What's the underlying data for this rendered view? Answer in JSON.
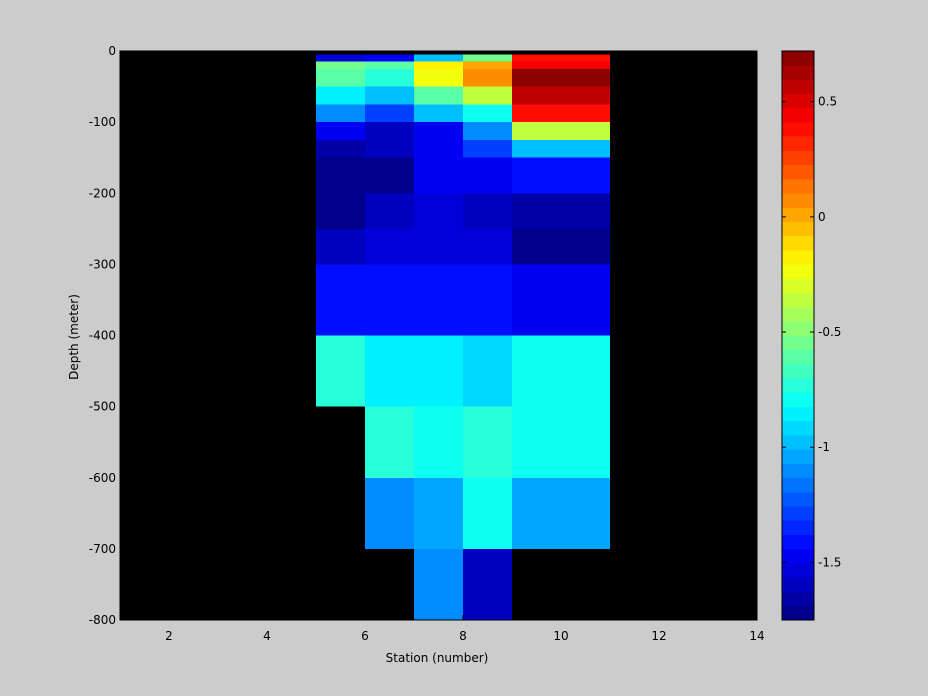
{
  "figure": {
    "background": "#cccccc",
    "plot_background": "#000000"
  },
  "chart_data": {
    "type": "heatmap",
    "xlabel": "Station (number)",
    "ylabel": "Depth (meter)",
    "xlim": [
      1,
      14
    ],
    "ylim": [
      -800,
      0
    ],
    "xticks": [
      2,
      4,
      6,
      8,
      10,
      12,
      14
    ],
    "yticks": [
      0,
      -100,
      -200,
      -300,
      -400,
      -500,
      -600,
      -700,
      -800
    ],
    "colorbar": {
      "colormap": "jet",
      "levels": 40,
      "range": [
        -1.75,
        0.72
      ],
      "ticks": [
        0.5,
        0,
        -0.5,
        -1,
        -1.5
      ]
    },
    "cells": [
      {
        "x0": 5,
        "x1": 6,
        "top": -5,
        "bottom": -15,
        "value": -1.55
      },
      {
        "x0": 6,
        "x1": 7,
        "top": -5,
        "bottom": -15,
        "value": -1.45
      },
      {
        "x0": 7,
        "x1": 8,
        "top": -5,
        "bottom": -15,
        "value": -1.0
      },
      {
        "x0": 8,
        "x1": 9,
        "top": -5,
        "bottom": -15,
        "value": -0.55
      },
      {
        "x0": 9,
        "x1": 11,
        "top": -5,
        "bottom": -15,
        "value": 0.35
      },
      {
        "x0": 5,
        "x1": 6,
        "top": -15,
        "bottom": -25,
        "value": -0.55
      },
      {
        "x0": 6,
        "x1": 7,
        "top": -15,
        "bottom": -25,
        "value": -0.6
      },
      {
        "x0": 7,
        "x1": 8,
        "top": -15,
        "bottom": -25,
        "value": -0.2
      },
      {
        "x0": 8,
        "x1": 9,
        "top": -15,
        "bottom": -25,
        "value": 0.03
      },
      {
        "x0": 9,
        "x1": 11,
        "top": -15,
        "bottom": -25,
        "value": 0.45
      },
      {
        "x0": 5,
        "x1": 6,
        "top": -25,
        "bottom": -50,
        "value": -0.62
      },
      {
        "x0": 6,
        "x1": 7,
        "top": -25,
        "bottom": -50,
        "value": -0.72
      },
      {
        "x0": 7,
        "x1": 8,
        "top": -25,
        "bottom": -50,
        "value": -0.25
      },
      {
        "x0": 8,
        "x1": 9,
        "top": -25,
        "bottom": -50,
        "value": 0.05
      },
      {
        "x0": 9,
        "x1": 11,
        "top": -25,
        "bottom": -50,
        "value": 0.7
      },
      {
        "x0": 5,
        "x1": 6,
        "top": -50,
        "bottom": -75,
        "value": -0.85
      },
      {
        "x0": 6,
        "x1": 7,
        "top": -50,
        "bottom": -75,
        "value": -1.0
      },
      {
        "x0": 7,
        "x1": 8,
        "top": -50,
        "bottom": -75,
        "value": -0.6
      },
      {
        "x0": 8,
        "x1": 9,
        "top": -50,
        "bottom": -75,
        "value": -0.35
      },
      {
        "x0": 9,
        "x1": 11,
        "top": -50,
        "bottom": -75,
        "value": 0.55
      },
      {
        "x0": 5,
        "x1": 6,
        "top": -75,
        "bottom": -100,
        "value": -1.08
      },
      {
        "x0": 6,
        "x1": 7,
        "top": -75,
        "bottom": -100,
        "value": -1.3
      },
      {
        "x0": 7,
        "x1": 8,
        "top": -75,
        "bottom": -100,
        "value": -1.0
      },
      {
        "x0": 8,
        "x1": 9,
        "top": -75,
        "bottom": -100,
        "value": -0.82
      },
      {
        "x0": 9,
        "x1": 11,
        "top": -75,
        "bottom": -100,
        "value": 0.38
      },
      {
        "x0": 5,
        "x1": 6,
        "top": -100,
        "bottom": -125,
        "value": -1.45
      },
      {
        "x0": 6,
        "x1": 7,
        "top": -100,
        "bottom": -125,
        "value": -1.58
      },
      {
        "x0": 7,
        "x1": 8,
        "top": -100,
        "bottom": -125,
        "value": -1.45
      },
      {
        "x0": 8,
        "x1": 9,
        "top": -100,
        "bottom": -125,
        "value": -1.1
      },
      {
        "x0": 9,
        "x1": 11,
        "top": -100,
        "bottom": -125,
        "value": -0.35
      },
      {
        "x0": 5,
        "x1": 6,
        "top": -125,
        "bottom": -150,
        "value": -1.65
      },
      {
        "x0": 6,
        "x1": 7,
        "top": -125,
        "bottom": -150,
        "value": -1.62
      },
      {
        "x0": 7,
        "x1": 8,
        "top": -125,
        "bottom": -150,
        "value": -1.5
      },
      {
        "x0": 8,
        "x1": 9,
        "top": -125,
        "bottom": -150,
        "value": -1.3
      },
      {
        "x0": 9,
        "x1": 11,
        "top": -125,
        "bottom": -150,
        "value": -0.95
      },
      {
        "x0": 5,
        "x1": 6,
        "top": -150,
        "bottom": -200,
        "value": -1.75
      },
      {
        "x0": 6,
        "x1": 7,
        "top": -150,
        "bottom": -200,
        "value": -1.7
      },
      {
        "x0": 7,
        "x1": 9,
        "top": -150,
        "bottom": -200,
        "value": -1.5
      },
      {
        "x0": 9,
        "x1": 11,
        "top": -150,
        "bottom": -200,
        "value": -1.4
      },
      {
        "x0": 5,
        "x1": 6,
        "top": -200,
        "bottom": -250,
        "value": -1.75
      },
      {
        "x0": 6,
        "x1": 7,
        "top": -200,
        "bottom": -250,
        "value": -1.62
      },
      {
        "x0": 7,
        "x1": 8,
        "top": -200,
        "bottom": -250,
        "value": -1.55
      },
      {
        "x0": 8,
        "x1": 9,
        "top": -200,
        "bottom": -250,
        "value": -1.6
      },
      {
        "x0": 9,
        "x1": 11,
        "top": -200,
        "bottom": -250,
        "value": -1.68
      },
      {
        "x0": 5,
        "x1": 6,
        "top": -250,
        "bottom": -300,
        "value": -1.6
      },
      {
        "x0": 6,
        "x1": 9,
        "top": -250,
        "bottom": -300,
        "value": -1.55
      },
      {
        "x0": 9,
        "x1": 11,
        "top": -250,
        "bottom": -300,
        "value": -1.72
      },
      {
        "x0": 5,
        "x1": 9,
        "top": -300,
        "bottom": -400,
        "value": -1.38
      },
      {
        "x0": 9,
        "x1": 11,
        "top": -300,
        "bottom": -400,
        "value": -1.45
      },
      {
        "x0": 5,
        "x1": 6,
        "top": -400,
        "bottom": -500,
        "value": -0.75
      },
      {
        "x0": 6,
        "x1": 8,
        "top": -400,
        "bottom": -500,
        "value": -0.85
      },
      {
        "x0": 8,
        "x1": 9,
        "top": -400,
        "bottom": -500,
        "value": -0.9
      },
      {
        "x0": 9,
        "x1": 11,
        "top": -400,
        "bottom": -500,
        "value": -0.82
      },
      {
        "x0": 6,
        "x1": 7,
        "top": -500,
        "bottom": -600,
        "value": -0.72
      },
      {
        "x0": 7,
        "x1": 8,
        "top": -500,
        "bottom": -600,
        "value": -0.78
      },
      {
        "x0": 8,
        "x1": 9,
        "top": -500,
        "bottom": -600,
        "value": -0.75
      },
      {
        "x0": 9,
        "x1": 11,
        "top": -500,
        "bottom": -600,
        "value": -0.8
      },
      {
        "x0": 6,
        "x1": 7,
        "top": -600,
        "bottom": -700,
        "value": -1.12
      },
      {
        "x0": 7,
        "x1": 8,
        "top": -600,
        "bottom": -700,
        "value": -1.05
      },
      {
        "x0": 8,
        "x1": 9,
        "top": -600,
        "bottom": -700,
        "value": -0.82
      },
      {
        "x0": 9,
        "x1": 11,
        "top": -600,
        "bottom": -700,
        "value": -1.05
      },
      {
        "x0": 7,
        "x1": 8,
        "top": -700,
        "bottom": -800,
        "value": -1.12
      },
      {
        "x0": 8,
        "x1": 9,
        "top": -700,
        "bottom": -800,
        "value": -1.6
      }
    ]
  }
}
